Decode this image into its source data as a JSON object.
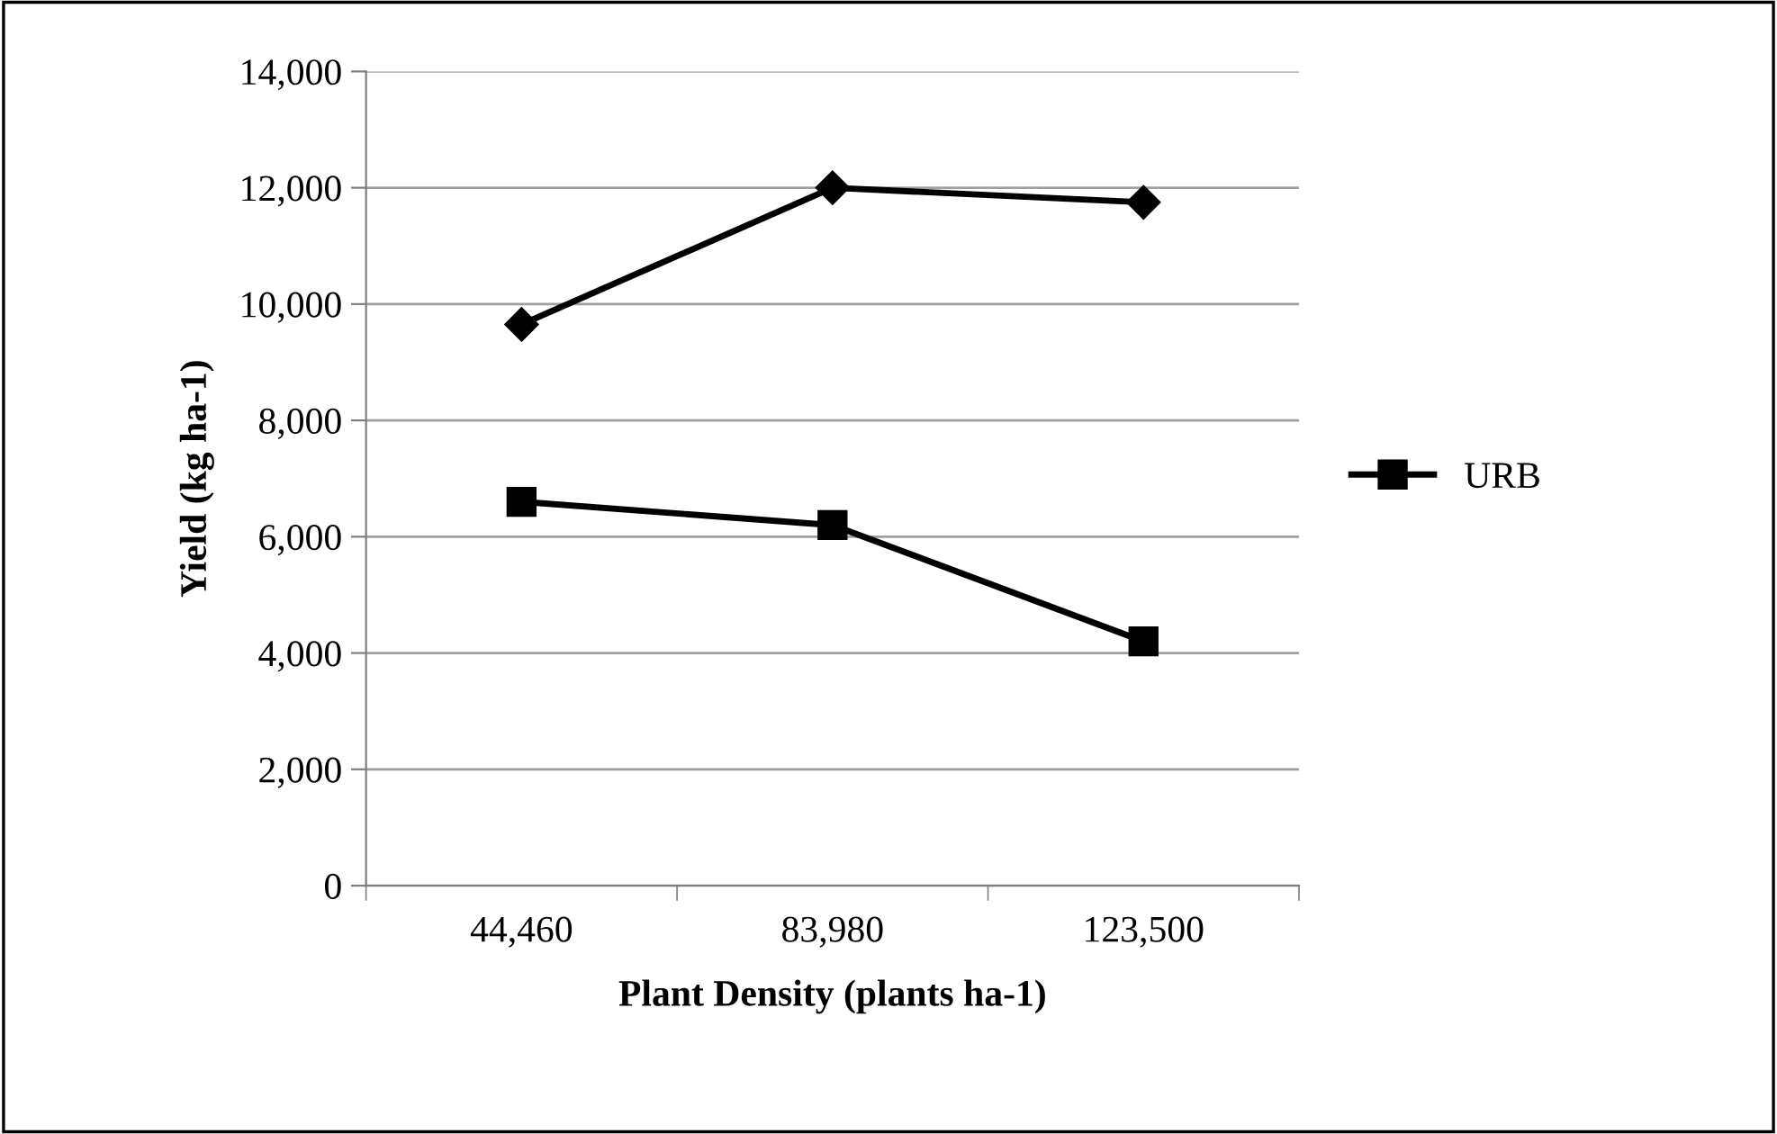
{
  "chart_data": {
    "type": "line",
    "xlabel": "Plant Density (plants ha-1)",
    "ylabel": "Yield (kg ha-1)",
    "categories": [
      "44,460",
      "83,980",
      "123,500"
    ],
    "series": [
      {
        "color": "#000000",
        "values": [
          9650,
          12000,
          11750
        ],
        "marker": "diamond"
      },
      {
        "name": "URB",
        "color": "#000000",
        "values": [
          6600,
          6200,
          4200
        ],
        "marker": "square"
      }
    ],
    "ylim": [
      0,
      14000
    ],
    "yticks": [
      {
        "value": 0,
        "label": "0"
      },
      {
        "value": 2000,
        "label": "2,000"
      },
      {
        "value": 4000,
        "label": "4,000"
      },
      {
        "value": 6000,
        "label": "6,000"
      },
      {
        "value": 8000,
        "label": "8,000"
      },
      {
        "value": 10000,
        "label": "10,000"
      },
      {
        "value": 12000,
        "label": "12,000"
      },
      {
        "value": 14000,
        "label": "14,000"
      }
    ],
    "grid": "y",
    "legend": "right",
    "line_style": "solid"
  }
}
